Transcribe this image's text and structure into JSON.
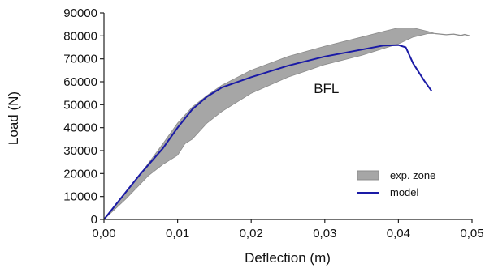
{
  "chart_data": {
    "type": "line",
    "xlabel": "Deflection (m)",
    "ylabel": "Load (N)",
    "xlim": [
      0,
      0.05
    ],
    "ylim": [
      0,
      90000
    ],
    "x_ticks": [
      0,
      0.01,
      0.02,
      0.03,
      0.04,
      0.05
    ],
    "x_tick_labels": [
      "0,00",
      "0,01",
      "0,02",
      "0,03",
      "0,04",
      "0,05"
    ],
    "y_ticks": [
      0,
      10000,
      20000,
      30000,
      40000,
      50000,
      60000,
      70000,
      80000,
      90000
    ],
    "y_tick_labels": [
      "0",
      "10000",
      "20000",
      "30000",
      "40000",
      "50000",
      "60000",
      "70000",
      "80000",
      "90000"
    ],
    "grid": false,
    "legend_position": "bottom-right",
    "annotations": [
      {
        "text": "BFL",
        "x": 0.0285,
        "y": 55000
      }
    ],
    "colors": {
      "band": "#a6a6a6",
      "band_edge": "#8c8c8c",
      "model": "#1a1aa6",
      "axis": "#222222"
    },
    "series": [
      {
        "name": "exp. zone",
        "kind": "band",
        "upper": [
          [
            0,
            0
          ],
          [
            0.002,
            8000
          ],
          [
            0.005,
            20000
          ],
          [
            0.008,
            33000
          ],
          [
            0.01,
            42000
          ],
          [
            0.012,
            49000
          ],
          [
            0.014,
            54000
          ],
          [
            0.016,
            58500
          ],
          [
            0.02,
            65000
          ],
          [
            0.025,
            71000
          ],
          [
            0.03,
            75500
          ],
          [
            0.035,
            79500
          ],
          [
            0.038,
            82000
          ],
          [
            0.04,
            83500
          ],
          [
            0.042,
            83500
          ],
          [
            0.044,
            82000
          ],
          [
            0.045,
            81000
          ]
        ],
        "lower": [
          [
            0,
            0
          ],
          [
            0.003,
            9000
          ],
          [
            0.006,
            19000
          ],
          [
            0.008,
            24000
          ],
          [
            0.01,
            28000
          ],
          [
            0.011,
            33000
          ],
          [
            0.012,
            35000
          ],
          [
            0.014,
            42000
          ],
          [
            0.016,
            47000
          ],
          [
            0.02,
            55000
          ],
          [
            0.025,
            62000
          ],
          [
            0.03,
            67500
          ],
          [
            0.035,
            71500
          ],
          [
            0.038,
            74500
          ],
          [
            0.04,
            76500
          ],
          [
            0.042,
            79500
          ],
          [
            0.044,
            81000
          ],
          [
            0.045,
            81000
          ]
        ],
        "tail": [
          [
            0.045,
            81000
          ],
          [
            0.0465,
            80500
          ],
          [
            0.0475,
            80800
          ],
          [
            0.0485,
            80200
          ],
          [
            0.049,
            80600
          ],
          [
            0.0497,
            80000
          ]
        ]
      },
      {
        "name": "model",
        "kind": "line",
        "points": [
          [
            0,
            0
          ],
          [
            0.002,
            8000
          ],
          [
            0.005,
            20000
          ],
          [
            0.008,
            31000
          ],
          [
            0.01,
            40000
          ],
          [
            0.012,
            48000
          ],
          [
            0.014,
            53500
          ],
          [
            0.016,
            57500
          ],
          [
            0.02,
            62000
          ],
          [
            0.025,
            67000
          ],
          [
            0.03,
            71000
          ],
          [
            0.035,
            74000
          ],
          [
            0.038,
            75800
          ],
          [
            0.04,
            76000
          ],
          [
            0.041,
            75000
          ],
          [
            0.042,
            68000
          ],
          [
            0.0435,
            60500
          ],
          [
            0.0445,
            56000
          ]
        ]
      }
    ]
  }
}
